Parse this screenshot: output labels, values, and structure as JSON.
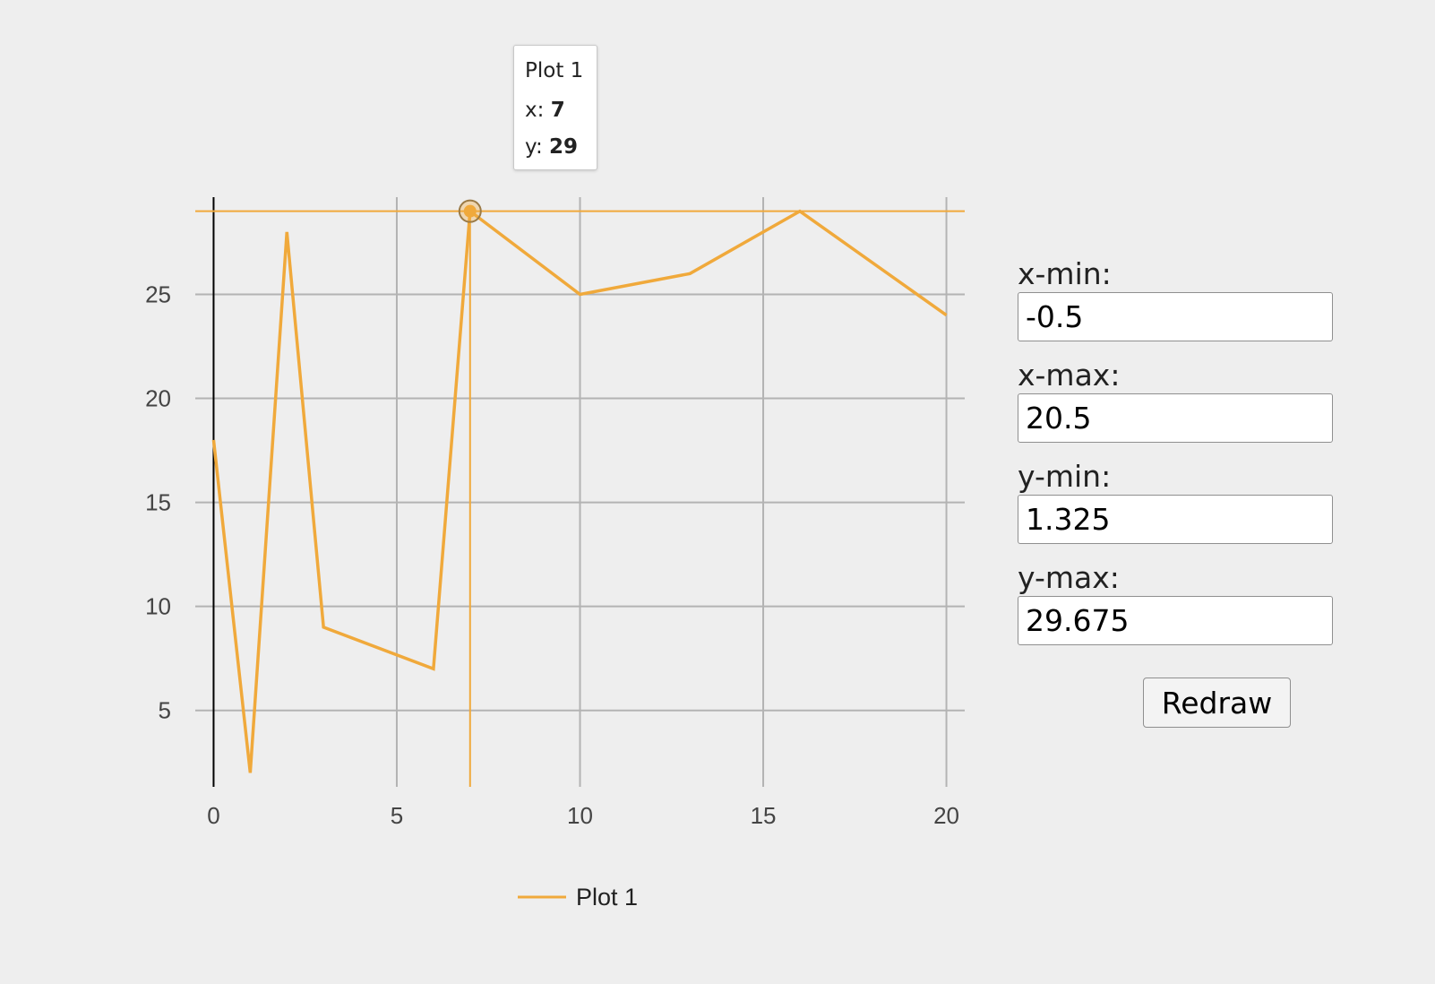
{
  "chart_data": {
    "type": "line",
    "series": [
      {
        "name": "Plot 1",
        "color": "#f0a93b",
        "x": [
          0,
          1,
          2,
          3,
          6,
          7,
          10,
          13,
          16,
          20
        ],
        "y": [
          18,
          2,
          28,
          9,
          7,
          29,
          25,
          26,
          29,
          24
        ]
      }
    ],
    "xlim": [
      -0.5,
      20.5
    ],
    "ylim": [
      1.325,
      29.675
    ],
    "x_ticks": [
      "0",
      "5",
      "10",
      "15",
      "20"
    ],
    "y_ticks": [
      "5",
      "10",
      "15",
      "20",
      "25"
    ],
    "grid": true,
    "legend_position": "bottom-center",
    "highlighted_point": {
      "x": 7,
      "y": 29
    }
  },
  "legend": {
    "label": "Plot 1"
  },
  "tooltip": {
    "title": "Plot 1",
    "x_label": "x:",
    "x_value": "7",
    "y_label": "y:",
    "y_value": "29"
  },
  "controls": {
    "xmin_label": "x-min:",
    "xmin_value": "-0.5",
    "xmax_label": "x-max:",
    "xmax_value": "20.5",
    "ymin_label": "y-min:",
    "ymin_value": "1.325",
    "ymax_label": "y-max:",
    "ymax_value": "29.675",
    "redraw_label": "Redraw"
  }
}
